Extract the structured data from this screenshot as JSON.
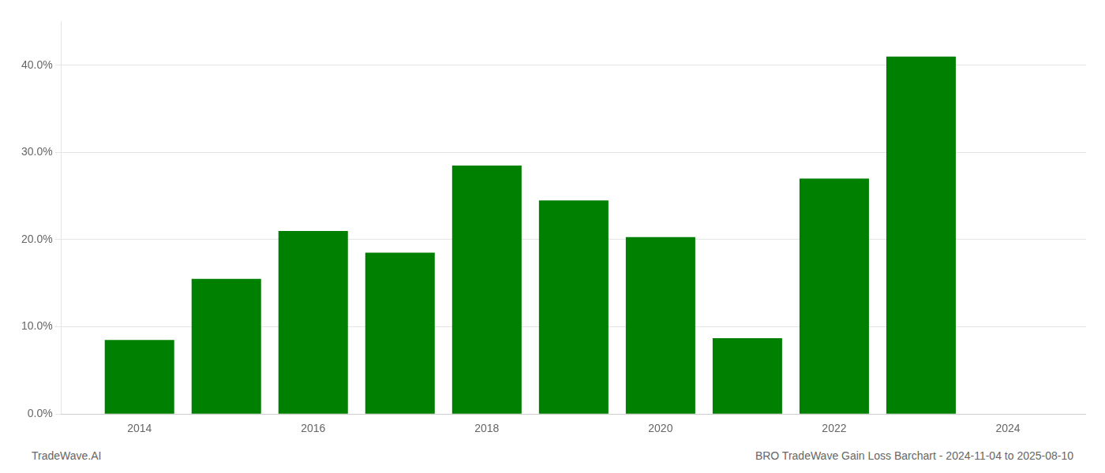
{
  "chart_data": {
    "type": "bar",
    "x": [
      2014,
      2015,
      2016,
      2017,
      2018,
      2019,
      2020,
      2021,
      2022,
      2023
    ],
    "values": [
      0.085,
      0.155,
      0.21,
      0.185,
      0.285,
      0.245,
      0.203,
      0.087,
      0.27,
      0.41
    ],
    "color": "#008000",
    "xlim": [
      2013.1,
      2024.9
    ],
    "xticks": [
      2014,
      2016,
      2018,
      2020,
      2022,
      2024
    ],
    "ylim": [
      0,
      0.45
    ],
    "yticks": [
      {
        "value": 0.0,
        "label": "0.0%"
      },
      {
        "value": 0.1,
        "label": "10.0%"
      },
      {
        "value": 0.2,
        "label": "20.0%"
      },
      {
        "value": 0.3,
        "label": "30.0%"
      },
      {
        "value": 0.4,
        "label": "40.0%"
      }
    ],
    "grid": "y",
    "annotations": [
      "TradeWave.AI",
      "BRO TradeWave Gain Loss Barchart - 2024-11-04 to 2025-08-10"
    ]
  }
}
